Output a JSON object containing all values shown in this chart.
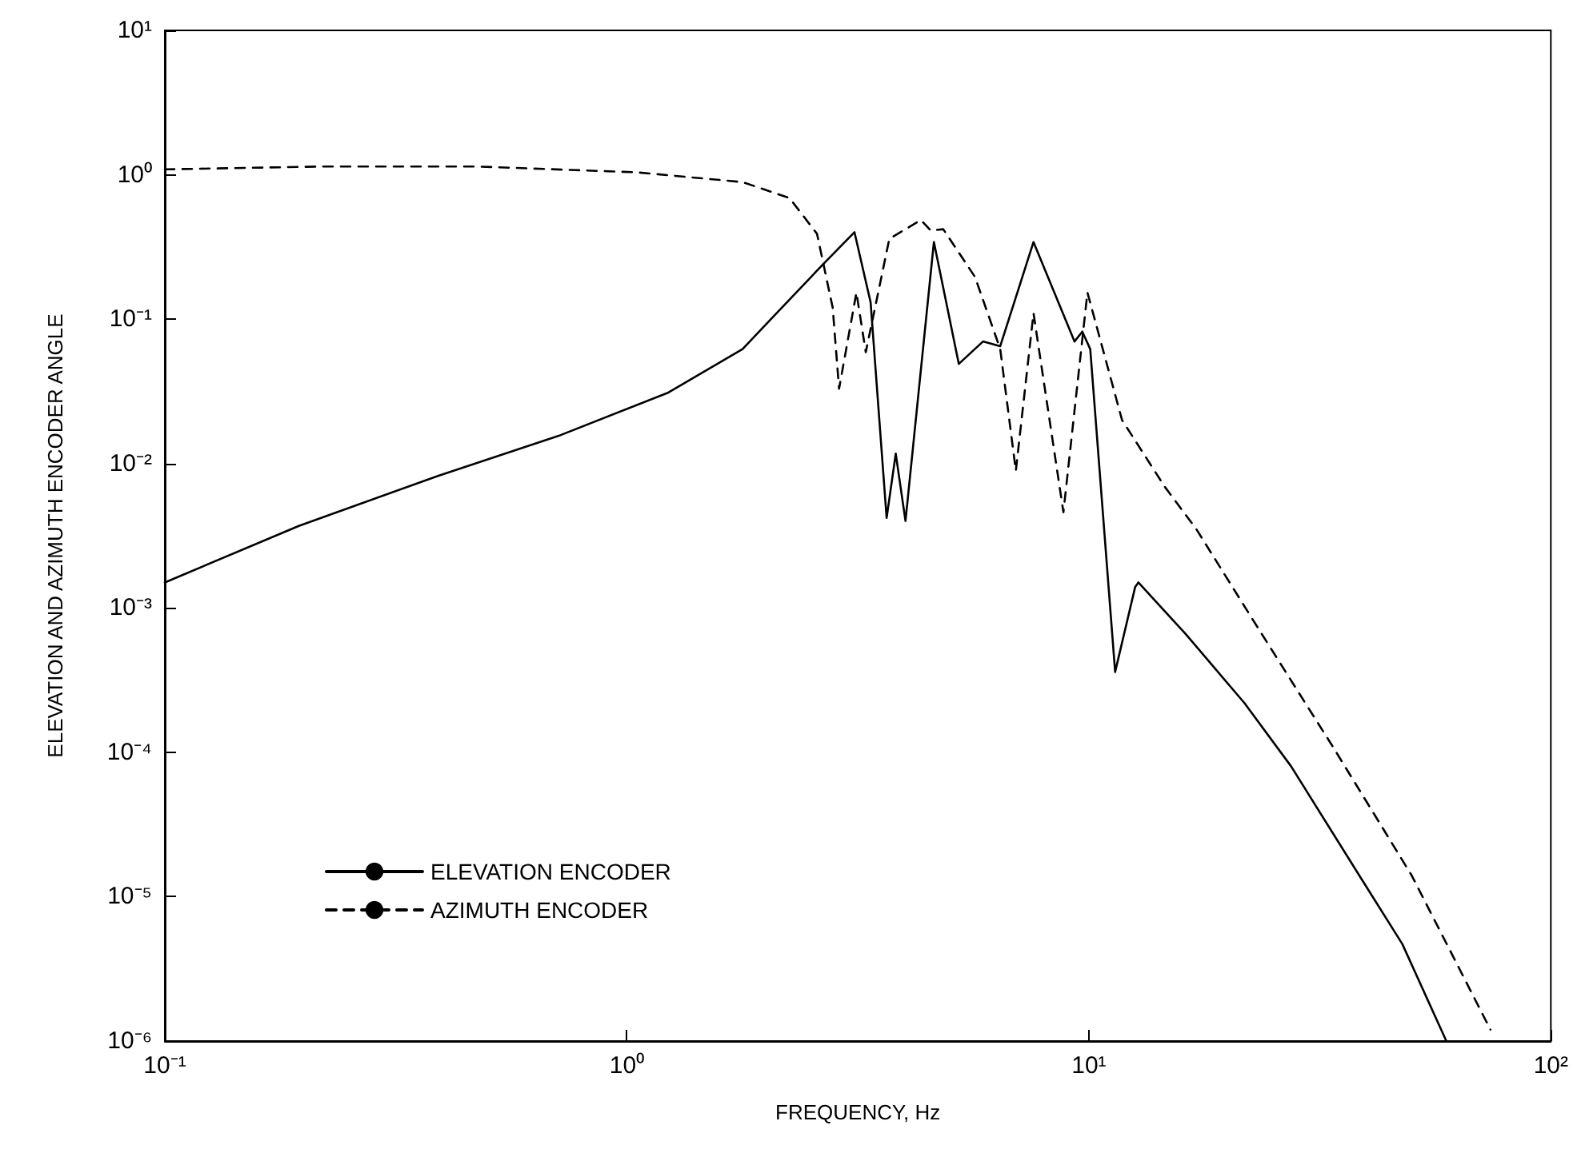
{
  "chart_data": {
    "type": "line",
    "xlabel": "FREQUENCY, Hz",
    "ylabel": "ELEVATION AND AZIMUTH ENCODER ANGLE",
    "log": "xy",
    "xlim": [
      0.1,
      100
    ],
    "ylim": [
      1e-06,
      10
    ],
    "xticks": [
      {
        "value": 0.1,
        "label": "10⁻¹"
      },
      {
        "value": 1,
        "label": "10⁰"
      },
      {
        "value": 10,
        "label": "10¹"
      },
      {
        "value": 100,
        "label": "10²"
      }
    ],
    "yticks": [
      {
        "value": 1e-06,
        "label": "10⁻⁶"
      },
      {
        "value": 1e-05,
        "label": "10⁻⁵"
      },
      {
        "value": 0.0001,
        "label": "10⁻⁴"
      },
      {
        "value": 0.001,
        "label": "10⁻³"
      },
      {
        "value": 0.01,
        "label": "10⁻²"
      },
      {
        "value": 0.1,
        "label": "10⁻¹"
      },
      {
        "value": 1,
        "label": "10⁰"
      },
      {
        "value": 10,
        "label": "10¹"
      }
    ],
    "grid": false,
    "legend": "bottom left",
    "marker": "none",
    "series": [
      {
        "name": "ELEVATION ENCODER",
        "color": "#000000",
        "line_style": "solid",
        "x": [
          0.1,
          0.195,
          0.39,
          0.71,
          1.23,
          1.78,
          2.08,
          2.64,
          3.11,
          3.37,
          3.65,
          3.82,
          4.01,
          4.62,
          5.23,
          5.9,
          6.43,
          7.59,
          9.31,
          9.68,
          10.07,
          11.4,
          12.6,
          12.8,
          16.2,
          21.7,
          27.4,
          38.5,
          47.7,
          59.4
        ],
        "values": [
          0.0015,
          0.0037,
          0.0082,
          0.0155,
          0.031,
          0.062,
          0.105,
          0.234,
          0.4,
          0.131,
          0.0042,
          0.0117,
          0.004,
          0.342,
          0.049,
          0.07,
          0.065,
          0.342,
          0.07,
          0.082,
          0.062,
          0.00036,
          0.0014,
          0.0015,
          0.00066,
          0.00022,
          8e-05,
          1.4e-05,
          4.7e-06,
          1e-06
        ]
      },
      {
        "name": "AZIMUTH ENCODER",
        "color": "#000000",
        "line_style": "dashed",
        "x": [
          0.1,
          0.217,
          0.476,
          1.05,
          1.78,
          2.25,
          2.58,
          2.79,
          2.88,
          3.14,
          3.29,
          3.7,
          4.33,
          4.55,
          4.84,
          5.67,
          6.43,
          6.95,
          7.59,
          8.81,
          9.93,
          11.8,
          14.6,
          17.1,
          23.4,
          33.7,
          50,
          74
        ],
        "values": [
          1.09,
          1.14,
          1.14,
          1.04,
          0.89,
          0.69,
          0.39,
          0.12,
          0.033,
          0.153,
          0.059,
          0.36,
          0.486,
          0.41,
          0.42,
          0.196,
          0.062,
          0.0089,
          0.11,
          0.0046,
          0.153,
          0.02,
          0.0069,
          0.0035,
          0.0007,
          0.00011,
          1.4e-05,
          1.2e-06
        ]
      }
    ]
  }
}
